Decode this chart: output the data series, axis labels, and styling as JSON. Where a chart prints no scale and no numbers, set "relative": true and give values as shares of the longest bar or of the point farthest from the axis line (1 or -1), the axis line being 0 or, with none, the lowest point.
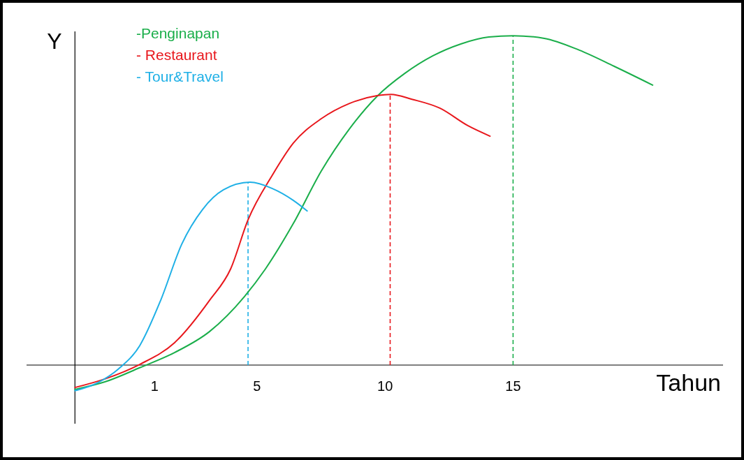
{
  "chart_data": {
    "type": "line",
    "relative": true,
    "xlabel": "Tahun",
    "ylabel": "Y",
    "xlim": [
      -4,
      23.2
    ],
    "xticks": [
      1,
      5,
      10,
      15
    ],
    "legend": "top left",
    "grid": false,
    "line_style": "solid",
    "marker": "none",
    "series": [
      {
        "name": "-Penginapan",
        "color": "#1aae4a",
        "x": [
          -2.11,
          -0.94,
          0.42,
          1.78,
          3.15,
          4.51,
          5.33,
          6.42,
          7.51,
          8.6,
          9.69,
          10.78,
          11.87,
          12.96,
          14.05,
          15.0,
          16.22,
          17.59,
          18.95,
          20.45
        ],
        "values": [
          -0.074,
          -0.051,
          -0.008,
          0.038,
          0.102,
          0.208,
          0.292,
          0.43,
          0.589,
          0.716,
          0.816,
          0.886,
          0.939,
          0.975,
          0.996,
          1.0,
          0.992,
          0.956,
          0.907,
          0.85
        ]
      },
      {
        "name": "- Restaurant",
        "color": "#e8171c",
        "x": [
          -2.11,
          -0.94,
          0.42,
          1.78,
          3.15,
          3.97,
          4.65,
          5.61,
          6.42,
          7.51,
          8.6,
          9.69,
          10.23,
          11.05,
          12.14,
          13.23,
          14.1
        ],
        "values": [
          -0.068,
          -0.042,
          0.002,
          0.068,
          0.197,
          0.292,
          0.441,
          0.578,
          0.674,
          0.748,
          0.794,
          0.818,
          0.822,
          0.807,
          0.78,
          0.727,
          0.695
        ]
      },
      {
        "name": "- Tour&Travel",
        "color": "#1fb0e6",
        "x": [
          -2.11,
          -1.21,
          -0.4,
          0.42,
          1.24,
          2.06,
          2.87,
          3.69,
          4.73,
          5.6,
          6.42,
          6.96
        ],
        "values": [
          -0.078,
          -0.053,
          -0.011,
          0.059,
          0.197,
          0.367,
          0.472,
          0.532,
          0.555,
          0.536,
          0.5,
          0.468
        ]
      }
    ],
    "ref_lines": [
      {
        "axis": "x",
        "value": -2.11,
        "color": "#000000",
        "line_style": "solid"
      },
      {
        "axis": "x",
        "value": 4.65,
        "color": "#1fb0e6",
        "line_style": "dashed"
      },
      {
        "axis": "x",
        "value": 10.2,
        "color": "#e8171c",
        "line_style": "dashed"
      },
      {
        "axis": "x",
        "value": 15.0,
        "color": "#1aae4a",
        "line_style": "dashed"
      }
    ]
  }
}
